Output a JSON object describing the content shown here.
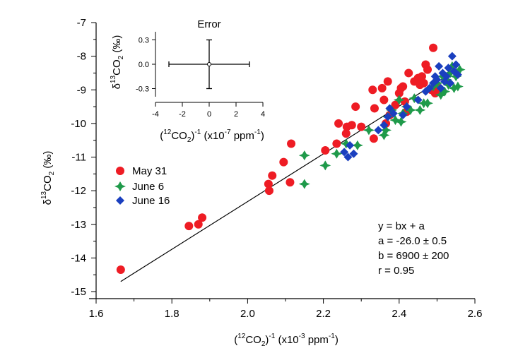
{
  "chart_data": [
    {
      "type": "scatter",
      "title": "",
      "xlabel": {
        "pre": "(",
        "sup1": "12",
        "main": "CO",
        "sub": "2",
        "close": ")",
        "sup2": "-1",
        "rest": " (x10",
        "sup3": "-3",
        "unit": " ppm",
        "sup4": "-1",
        "end": ")"
      },
      "ylabel": {
        "delta": "δ",
        "sup": "13",
        "main": "CO",
        "sub": "2",
        "unit": " (‰)"
      },
      "xlim": [
        1.6,
        2.6
      ],
      "ylim": [
        -15,
        -7
      ],
      "x_ticks": [
        "1.6",
        "1.8",
        "2.0",
        "2.2",
        "2.4",
        "2.6"
      ],
      "y_ticks": [
        "-15",
        "-14",
        "-13",
        "-12",
        "-11",
        "-10",
        "-9",
        "-8",
        "-7"
      ],
      "grid": false,
      "legend_position": "left",
      "series": [
        {
          "name": "May 31",
          "color": "#ee1c24",
          "marker": "circle",
          "points": [
            [
              1.665,
              -14.35
            ],
            [
              1.845,
              -13.05
            ],
            [
              1.87,
              -13.0
            ],
            [
              1.88,
              -12.8
            ],
            [
              2.055,
              -11.8
            ],
            [
              2.057,
              -12.0
            ],
            [
              2.065,
              -11.55
            ],
            [
              2.095,
              -11.15
            ],
            [
              2.112,
              -11.75
            ],
            [
              2.115,
              -10.6
            ],
            [
              2.205,
              -10.8
            ],
            [
              2.235,
              -10.6
            ],
            [
              2.24,
              -10.0
            ],
            [
              2.26,
              -10.3
            ],
            [
              2.262,
              -10.1
            ],
            [
              2.275,
              -10.05
            ],
            [
              2.285,
              -9.5
            ],
            [
              2.3,
              -10.1
            ],
            [
              2.33,
              -9.0
            ],
            [
              2.333,
              -10.45
            ],
            [
              2.335,
              -9.55
            ],
            [
              2.355,
              -8.95
            ],
            [
              2.36,
              -9.3
            ],
            [
              2.365,
              -10.0
            ],
            [
              2.37,
              -8.75
            ],
            [
              2.375,
              -9.75
            ],
            [
              2.39,
              -9.45
            ],
            [
              2.4,
              -9.1
            ],
            [
              2.405,
              -8.95
            ],
            [
              2.41,
              -8.9
            ],
            [
              2.415,
              -9.35
            ],
            [
              2.42,
              -9.65
            ],
            [
              2.425,
              -8.5
            ],
            [
              2.44,
              -8.75
            ],
            [
              2.45,
              -8.65
            ],
            [
              2.455,
              -8.85
            ],
            [
              2.46,
              -8.6
            ],
            [
              2.465,
              -8.8
            ],
            [
              2.47,
              -8.25
            ],
            [
              2.475,
              -8.4
            ],
            [
              2.485,
              -9.0
            ],
            [
              2.49,
              -7.75
            ],
            [
              2.495,
              -9.1
            ],
            [
              2.505,
              -8.95
            ]
          ]
        },
        {
          "name": "June 6",
          "color": "#1f9a4a",
          "marker": "star",
          "points": [
            [
              2.15,
              -11.8
            ],
            [
              2.15,
              -10.95
            ],
            [
              2.205,
              -11.25
            ],
            [
              2.235,
              -10.9
            ],
            [
              2.26,
              -10.6
            ],
            [
              2.29,
              -10.65
            ],
            [
              2.32,
              -10.2
            ],
            [
              2.36,
              -10.35
            ],
            [
              2.365,
              -10.2
            ],
            [
              2.37,
              -9.8
            ],
            [
              2.38,
              -9.6
            ],
            [
              2.39,
              -9.9
            ],
            [
              2.4,
              -9.3
            ],
            [
              2.405,
              -9.95
            ],
            [
              2.41,
              -9.7
            ],
            [
              2.42,
              -9.5
            ],
            [
              2.43,
              -9.6
            ],
            [
              2.44,
              -9.25
            ],
            [
              2.455,
              -9.6
            ],
            [
              2.465,
              -9.4
            ],
            [
              2.475,
              -9.4
            ],
            [
              2.49,
              -8.9
            ],
            [
              2.5,
              -8.8
            ],
            [
              2.51,
              -9.15
            ],
            [
              2.515,
              -8.6
            ],
            [
              2.52,
              -9.05
            ],
            [
              2.525,
              -8.7
            ],
            [
              2.53,
              -8.85
            ],
            [
              2.535,
              -8.5
            ],
            [
              2.54,
              -8.3
            ],
            [
              2.545,
              -8.95
            ],
            [
              2.55,
              -8.6
            ],
            [
              2.555,
              -8.9
            ],
            [
              2.56,
              -8.4
            ]
          ]
        },
        {
          "name": "June 16",
          "color": "#1a3fbf",
          "marker": "diamond",
          "points": [
            [
              2.255,
              -10.85
            ],
            [
              2.265,
              -11.0
            ],
            [
              2.27,
              -10.65
            ],
            [
              2.28,
              -10.9
            ],
            [
              2.345,
              -10.2
            ],
            [
              2.36,
              -10.05
            ],
            [
              2.37,
              -9.8
            ],
            [
              2.375,
              -9.55
            ],
            [
              2.385,
              -9.7
            ],
            [
              2.41,
              -9.75
            ],
            [
              2.42,
              -9.5
            ],
            [
              2.45,
              -9.3
            ],
            [
              2.47,
              -9.05
            ],
            [
              2.48,
              -8.95
            ],
            [
              2.49,
              -8.8
            ],
            [
              2.495,
              -8.6
            ],
            [
              2.5,
              -8.7
            ],
            [
              2.505,
              -8.3
            ],
            [
              2.51,
              -8.95
            ],
            [
              2.515,
              -8.5
            ],
            [
              2.52,
              -8.75
            ],
            [
              2.525,
              -8.6
            ],
            [
              2.53,
              -8.35
            ],
            [
              2.535,
              -8.8
            ],
            [
              2.54,
              -8.0
            ],
            [
              2.545,
              -8.45
            ],
            [
              2.55,
              -8.25
            ],
            [
              2.555,
              -8.55
            ]
          ]
        }
      ],
      "fit_line": {
        "x": [
          1.665,
          2.56
        ],
        "y": [
          -14.7,
          -8.35
        ]
      },
      "annotations": [
        "y = bx + a",
        "a = -26.0 ± 0.5",
        "b = 6900 ± 200",
        "r = 0.95"
      ]
    },
    {
      "type": "scatter",
      "title": "Error",
      "xlabel": {
        "pre": "(",
        "sup1": "12",
        "main": "CO",
        "sub": "2",
        "close": ")",
        "sup2": "-1",
        "rest": " (x10",
        "sup3": "-7",
        "unit": " ppm",
        "sup4": "-1",
        "end": ")"
      },
      "ylabel": {
        "delta": "δ",
        "sup": "13",
        "main": "CO",
        "sub": "2",
        "unit": " (‰)"
      },
      "xlim": [
        -4,
        4
      ],
      "ylim": [
        -0.4,
        0.4
      ],
      "x_ticks": [
        "-4",
        "-2",
        "0",
        "2",
        "4"
      ],
      "y_ticks": [
        "-0.3",
        "0.0",
        "0.3"
      ],
      "point": {
        "x": 0,
        "y": 0,
        "x_error": 3,
        "y_error": 0.3
      }
    }
  ]
}
